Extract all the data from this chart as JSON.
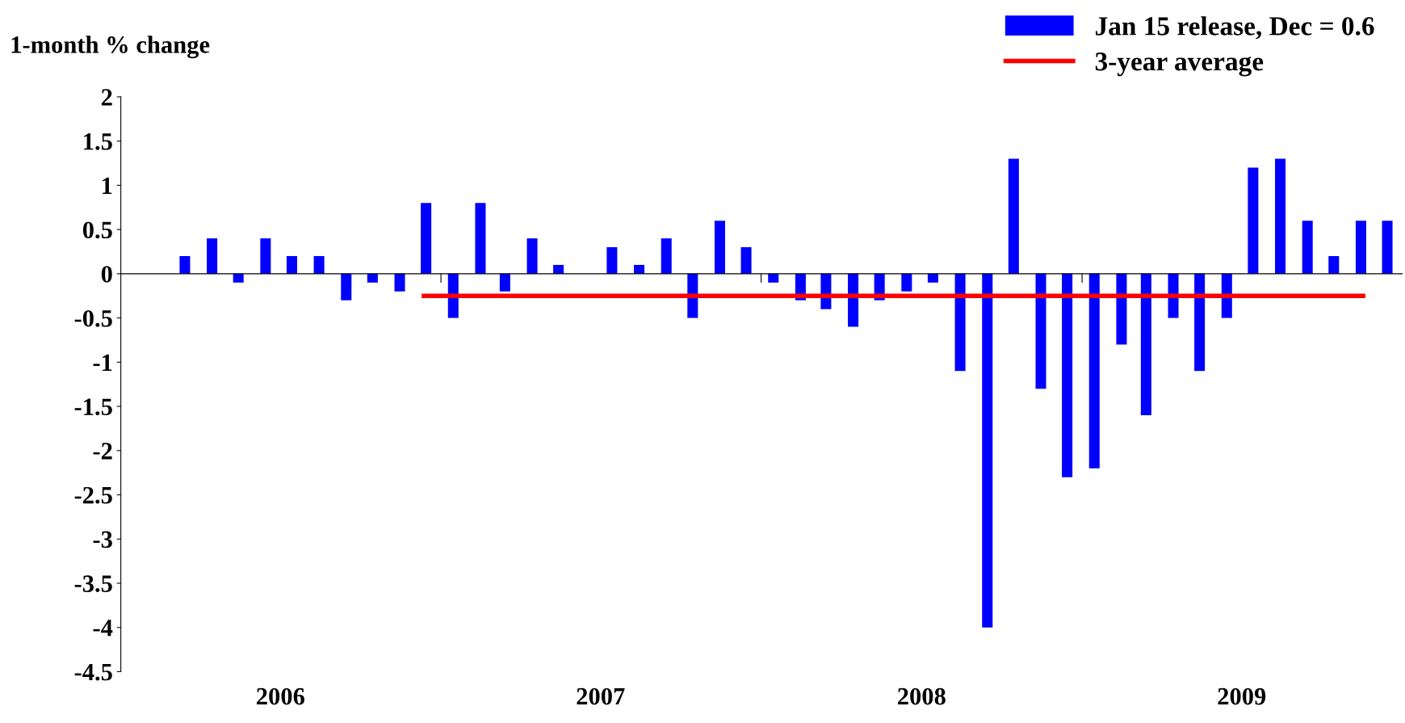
{
  "chart_data": {
    "type": "bar",
    "ylabel": "1-month % change",
    "x": [
      "2006-03-15",
      "2006-04-15",
      "2006-05-15",
      "2006-06-15",
      "2006-07-15",
      "2006-08-15",
      "2006-09-15",
      "2006-10-15",
      "2006-11-15",
      "2006-12-15",
      "2007-01-15",
      "2007-02-15",
      "2007-03-15",
      "2007-04-15",
      "2007-05-15",
      "2007-06-15",
      "2007-07-15",
      "2007-08-15",
      "2007-09-15",
      "2007-10-15",
      "2007-11-15",
      "2007-12-15",
      "2008-01-15",
      "2008-02-15",
      "2008-03-15",
      "2008-04-15",
      "2008-05-15",
      "2008-06-15",
      "2008-07-15",
      "2008-08-15",
      "2008-09-15",
      "2008-10-15",
      "2008-11-15",
      "2008-12-15",
      "2009-01-15",
      "2009-02-15",
      "2009-03-15",
      "2009-04-15",
      "2009-05-15",
      "2009-06-15",
      "2009-07-15",
      "2009-08-15",
      "2009-09-15",
      "2009-10-15",
      "2009-11-15",
      "2009-12-15"
    ],
    "series": [
      {
        "name": "Jan 15 release, Dec = 0.6",
        "type": "bar",
        "color": "#0000ff",
        "values": [
          0.2,
          0.4,
          -0.1,
          0.4,
          0.2,
          0.2,
          -0.3,
          -0.1,
          -0.2,
          0.8,
          -0.5,
          0.8,
          -0.2,
          0.4,
          0.1,
          0,
          0.3,
          0.1,
          0.4,
          -0.5,
          0.6,
          0.3,
          -0.1,
          -0.3,
          -0.4,
          -0.6,
          -0.3,
          -0.2,
          -0.1,
          -1.1,
          -4,
          1.3,
          -1.3,
          -2.3,
          -2.2,
          -0.8,
          -1.6,
          -0.5,
          -1.1,
          -0.5,
          1.2,
          1.3,
          0.6,
          0.2,
          0.6,
          0.6
        ]
      },
      {
        "name": "3-year average",
        "type": "line",
        "color": "#ff0000",
        "x": [
          "2006-12-10",
          "2009-11-20"
        ],
        "values": [
          -0.25,
          -0.25
        ]
      }
    ],
    "xlim": [
      "2006-01-01",
      "2010-01-01"
    ],
    "xticks": [
      {
        "value": "2006-07-02",
        "label": "2006"
      },
      {
        "value": "2007-01-01",
        "label": null
      },
      {
        "value": "2007-07-02",
        "label": "2007"
      },
      {
        "value": "2008-01-01",
        "label": null
      },
      {
        "value": "2008-07-02",
        "label": "2008"
      },
      {
        "value": "2009-01-01",
        "label": null
      },
      {
        "value": "2009-07-02",
        "label": "2009"
      }
    ],
    "ylim": [
      -4.5,
      2
    ],
    "yticks": [
      -4.5,
      -4,
      -3.5,
      -3,
      -2.5,
      -2,
      -1.5,
      -1,
      -0.5,
      0,
      0.5,
      1,
      1.5,
      2
    ],
    "legend": "top right"
  }
}
